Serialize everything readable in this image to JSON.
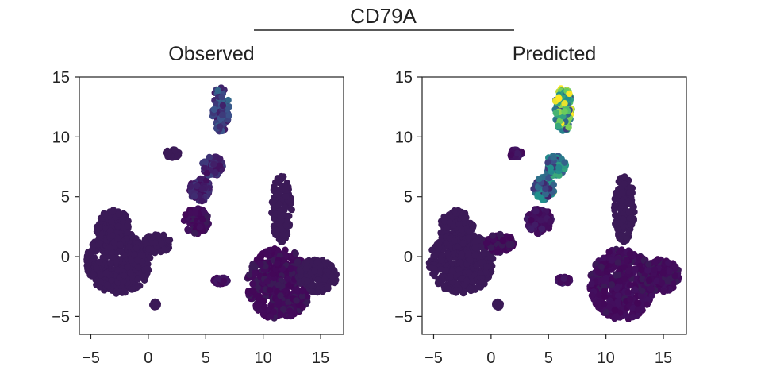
{
  "figure": {
    "title": "CD79A"
  },
  "chart_data": [
    {
      "type": "scatter",
      "title": "Observed",
      "xlim": [
        -6,
        17
      ],
      "ylim": [
        -6.5,
        15
      ],
      "xticks": [
        -5,
        0,
        5,
        10,
        15
      ],
      "yticks": [
        -5,
        0,
        5,
        10,
        15
      ],
      "xticklabels": [
        "−5",
        "0",
        "5",
        "10",
        "15"
      ],
      "yticklabels": [
        "−5",
        "0",
        "5",
        "10",
        "15"
      ],
      "colormap": [
        "#440154",
        "#3b528b",
        "#21918c",
        "#5ec962",
        "#fde725"
      ],
      "point_color": "#3b1a57",
      "clusters": [
        {
          "name": "left-blob",
          "cx": -2.6,
          "cy": -0.5,
          "rx": 2.8,
          "ry": 2.6,
          "expr": 0.0
        },
        {
          "name": "left-blob-top",
          "cx": -3.0,
          "cy": 2.3,
          "rx": 1.5,
          "ry": 1.6,
          "expr": 0.0
        },
        {
          "name": "left-blob-arm",
          "cx": 0.8,
          "cy": 1.1,
          "rx": 1.2,
          "ry": 0.8,
          "expr": 0.0
        },
        {
          "name": "left-small",
          "cx": 0.6,
          "cy": -4.0,
          "rx": 0.25,
          "ry": 0.25,
          "expr": 0.0
        },
        {
          "name": "mid-blob",
          "cx": 4.2,
          "cy": 3.0,
          "rx": 1.1,
          "ry": 1.1,
          "expr": 0.03
        },
        {
          "name": "mid-arm",
          "cx": 4.5,
          "cy": 5.6,
          "rx": 0.9,
          "ry": 1.0,
          "expr": 0.1
        },
        {
          "name": "small-a",
          "cx": 2.1,
          "cy": 8.6,
          "rx": 0.6,
          "ry": 0.35,
          "expr": 0.0
        },
        {
          "name": "bcell-mid",
          "cx": 5.6,
          "cy": 7.6,
          "rx": 0.9,
          "ry": 0.9,
          "expr": 0.12
        },
        {
          "name": "bcell-top",
          "cx": 6.3,
          "cy": 12.3,
          "rx": 0.75,
          "ry": 1.9,
          "expr": 0.2
        },
        {
          "name": "right-stalk",
          "cx": 11.6,
          "cy": 4.0,
          "rx": 0.9,
          "ry": 2.8,
          "expr": 0.0
        },
        {
          "name": "right-main",
          "cx": 11.4,
          "cy": -2.3,
          "rx": 2.8,
          "ry": 3.0,
          "expr": 0.02
        },
        {
          "name": "right-side",
          "cx": 14.7,
          "cy": -1.6,
          "rx": 1.7,
          "ry": 1.4,
          "expr": 0.0
        },
        {
          "name": "right-small",
          "cx": 6.3,
          "cy": -2.0,
          "rx": 0.6,
          "ry": 0.3,
          "expr": 0.05
        }
      ]
    },
    {
      "type": "scatter",
      "title": "Predicted",
      "xlim": [
        -6,
        17
      ],
      "ylim": [
        -6.5,
        15
      ],
      "xticks": [
        -5,
        0,
        5,
        10,
        15
      ],
      "yticks": [
        -5,
        0,
        5,
        10,
        15
      ],
      "xticklabels": [
        "−5",
        "0",
        "5",
        "10",
        "15"
      ],
      "yticklabels": [
        "−5",
        "0",
        "5",
        "10",
        "15"
      ],
      "colormap": [
        "#440154",
        "#3b528b",
        "#21918c",
        "#5ec962",
        "#fde725"
      ],
      "point_color": "#3b1a57",
      "clusters": [
        {
          "name": "left-blob",
          "cx": -2.6,
          "cy": -0.5,
          "rx": 2.8,
          "ry": 2.6,
          "expr": 0.0
        },
        {
          "name": "left-blob-top",
          "cx": -3.0,
          "cy": 2.3,
          "rx": 1.5,
          "ry": 1.6,
          "expr": 0.0
        },
        {
          "name": "left-blob-arm",
          "cx": 0.8,
          "cy": 1.1,
          "rx": 1.2,
          "ry": 0.8,
          "expr": 0.02
        },
        {
          "name": "left-small",
          "cx": 0.6,
          "cy": -4.0,
          "rx": 0.25,
          "ry": 0.25,
          "expr": 0.0
        },
        {
          "name": "mid-blob",
          "cx": 4.2,
          "cy": 3.0,
          "rx": 1.1,
          "ry": 1.1,
          "expr": 0.05
        },
        {
          "name": "mid-arm",
          "cx": 4.6,
          "cy": 5.7,
          "rx": 0.9,
          "ry": 1.0,
          "expr": 0.32
        },
        {
          "name": "small-a",
          "cx": 2.1,
          "cy": 8.6,
          "rx": 0.6,
          "ry": 0.35,
          "expr": 0.05
        },
        {
          "name": "bcell-mid",
          "cx": 5.6,
          "cy": 7.6,
          "rx": 0.9,
          "ry": 0.9,
          "expr": 0.38
        },
        {
          "name": "bcell-top",
          "cx": 6.3,
          "cy": 12.3,
          "rx": 0.75,
          "ry": 1.9,
          "expr": 0.6
        },
        {
          "name": "right-stalk",
          "cx": 11.6,
          "cy": 4.0,
          "rx": 0.9,
          "ry": 2.8,
          "expr": 0.0
        },
        {
          "name": "right-main",
          "cx": 11.4,
          "cy": -2.3,
          "rx": 2.8,
          "ry": 3.0,
          "expr": 0.03
        },
        {
          "name": "right-side",
          "cx": 14.7,
          "cy": -1.6,
          "rx": 1.7,
          "ry": 1.4,
          "expr": 0.03
        },
        {
          "name": "right-small",
          "cx": 6.3,
          "cy": -2.0,
          "rx": 0.6,
          "ry": 0.3,
          "expr": 0.05
        }
      ]
    }
  ]
}
